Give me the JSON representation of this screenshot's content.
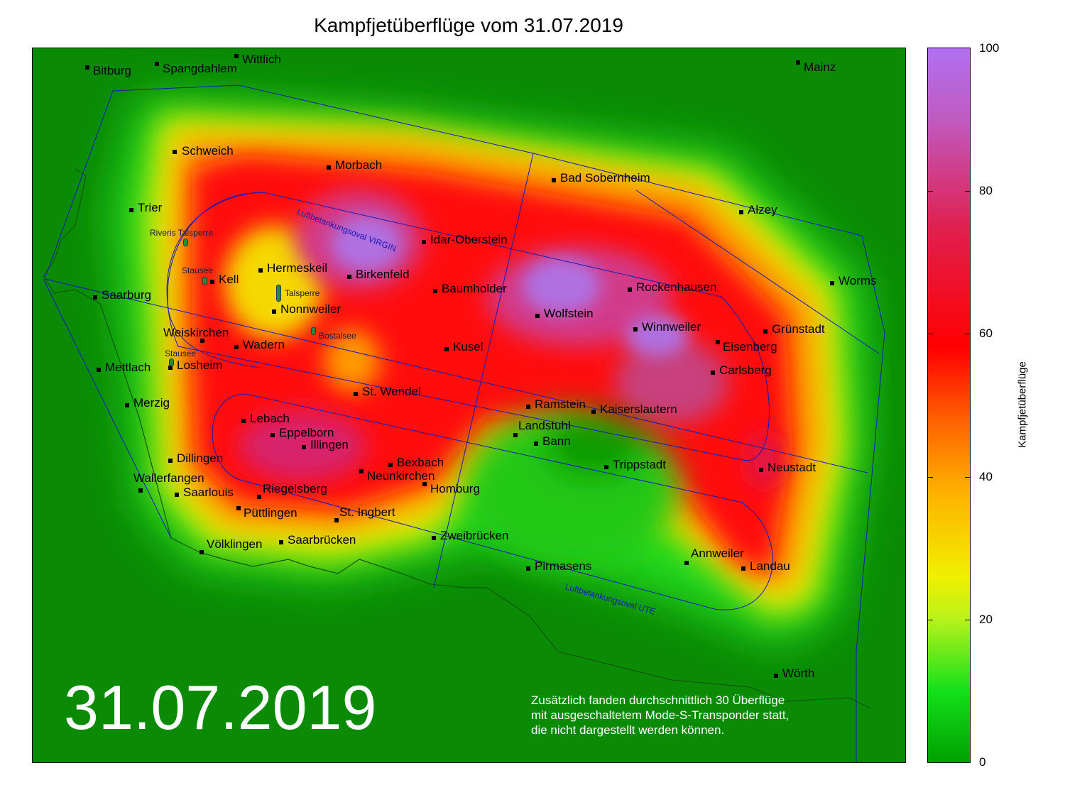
{
  "title": "Kampfjetüberflüge vom 31.07.2019",
  "date_overlay": "31.07.2019",
  "note_lines": [
    "Zusätzlich fanden durchschnittlich 30 Überflüge",
    "mit ausgeschaltetem Mode-S-Transponder statt,",
    "die nicht dargestellt werden können."
  ],
  "colorbar": {
    "label": "Kampfjetüberflüge",
    "ticks": [
      "0",
      "20",
      "40",
      "60",
      "80",
      "100"
    ],
    "min": 0,
    "max": 100,
    "colors": [
      "#00a000",
      "#13e01a",
      "#f0f000",
      "#ff6000",
      "#ff0000",
      "#e02050",
      "#b070f0"
    ]
  },
  "cities": [
    {
      "name": "Bitburg"
    },
    {
      "name": "Spangdahlem"
    },
    {
      "name": "Wittlich"
    },
    {
      "name": "Mainz"
    },
    {
      "name": "Schweich"
    },
    {
      "name": "Morbach"
    },
    {
      "name": "Bad Sobernheim"
    },
    {
      "name": "Trier"
    },
    {
      "name": "Alzey"
    },
    {
      "name": "Idar-Oberstein"
    },
    {
      "name": "Hermeskeil"
    },
    {
      "name": "Kell"
    },
    {
      "name": "Birkenfeld"
    },
    {
      "name": "Worms"
    },
    {
      "name": "Saarburg"
    },
    {
      "name": "Baumholder"
    },
    {
      "name": "Rockenhausen"
    },
    {
      "name": "Nonnweiler"
    },
    {
      "name": "Wolfstein"
    },
    {
      "name": "Winnweiler"
    },
    {
      "name": "Grünstadt"
    },
    {
      "name": "Weiskirchen"
    },
    {
      "name": "Wadern"
    },
    {
      "name": "Kusel"
    },
    {
      "name": "Eisenberg"
    },
    {
      "name": "Mettlach"
    },
    {
      "name": "Losheim"
    },
    {
      "name": "Carlsberg"
    },
    {
      "name": "St. Wendel"
    },
    {
      "name": "Merzig"
    },
    {
      "name": "Ramstein"
    },
    {
      "name": "Kaiserslautern"
    },
    {
      "name": "Lebach"
    },
    {
      "name": "Landstuhl"
    },
    {
      "name": "Eppelborn"
    },
    {
      "name": "Bann"
    },
    {
      "name": "Illingen"
    },
    {
      "name": "Dillingen"
    },
    {
      "name": "Bexbach"
    },
    {
      "name": "Trippstadt"
    },
    {
      "name": "Neustadt"
    },
    {
      "name": "Neunkirchen"
    },
    {
      "name": "Wallerfangen"
    },
    {
      "name": "Homburg"
    },
    {
      "name": "Riegelsberg"
    },
    {
      "name": "Saarlouis"
    },
    {
      "name": "Püttlingen"
    },
    {
      "name": "St. Ingbert"
    },
    {
      "name": "Zweibrücken"
    },
    {
      "name": "Völklingen"
    },
    {
      "name": "Saarbrücken"
    },
    {
      "name": "Annweiler"
    },
    {
      "name": "Pirmasens"
    },
    {
      "name": "Landau"
    },
    {
      "name": "Wörth"
    }
  ],
  "lakes": [
    "Riveris Talsperre",
    "Stausee",
    "Talsperre",
    "Bostalsee",
    "Stausee"
  ],
  "ovals": [
    "Luftbetankungsoval VIRGIN",
    "Luftbetankungsoval UTE"
  ]
}
